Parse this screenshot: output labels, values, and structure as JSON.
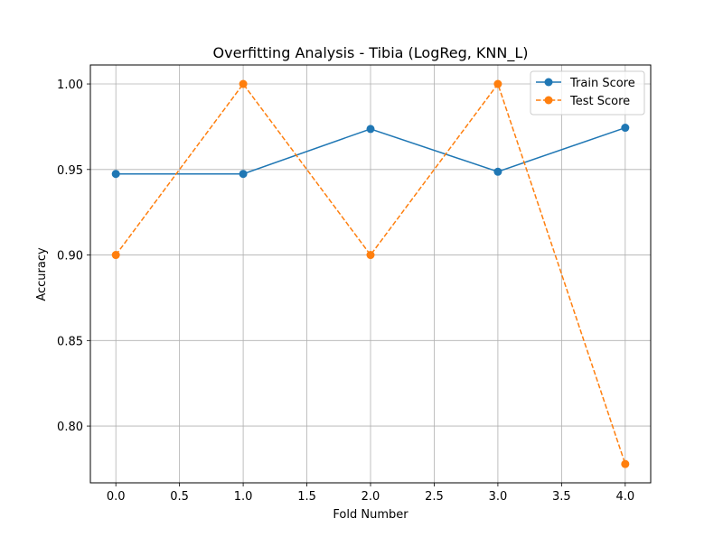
{
  "chart_data": {
    "type": "line",
    "title": "Overfitting Analysis - Tibia (LogReg, KNN_L)",
    "xlabel": "Fold Number",
    "ylabel": "Accuracy",
    "xlim": [
      -0.2,
      4.2
    ],
    "ylim": [
      0.7668,
      1.0111
    ],
    "xticks": [
      0.0,
      0.5,
      1.0,
      1.5,
      2.0,
      2.5,
      3.0,
      3.5,
      4.0
    ],
    "xtick_labels": [
      "0.0",
      "0.5",
      "1.0",
      "1.5",
      "2.0",
      "2.5",
      "3.0",
      "3.5",
      "4.0"
    ],
    "yticks": [
      0.8,
      0.85,
      0.9,
      0.95,
      1.0
    ],
    "ytick_labels": [
      "0.80",
      "0.85",
      "0.90",
      "0.95",
      "1.00"
    ],
    "grid": true,
    "legend_position": "top-right",
    "x": [
      0,
      1,
      2,
      3,
      4
    ],
    "series": [
      {
        "name": "Train Score",
        "values": [
          0.9474,
          0.9474,
          0.9737,
          0.9487,
          0.9744
        ],
        "color": "#1f77b4",
        "linestyle": "solid",
        "marker": "circle"
      },
      {
        "name": "Test Score",
        "values": [
          0.9,
          1.0,
          0.9,
          1.0,
          0.7778
        ],
        "color": "#ff7f0e",
        "linestyle": "dashed",
        "marker": "circle"
      }
    ]
  }
}
